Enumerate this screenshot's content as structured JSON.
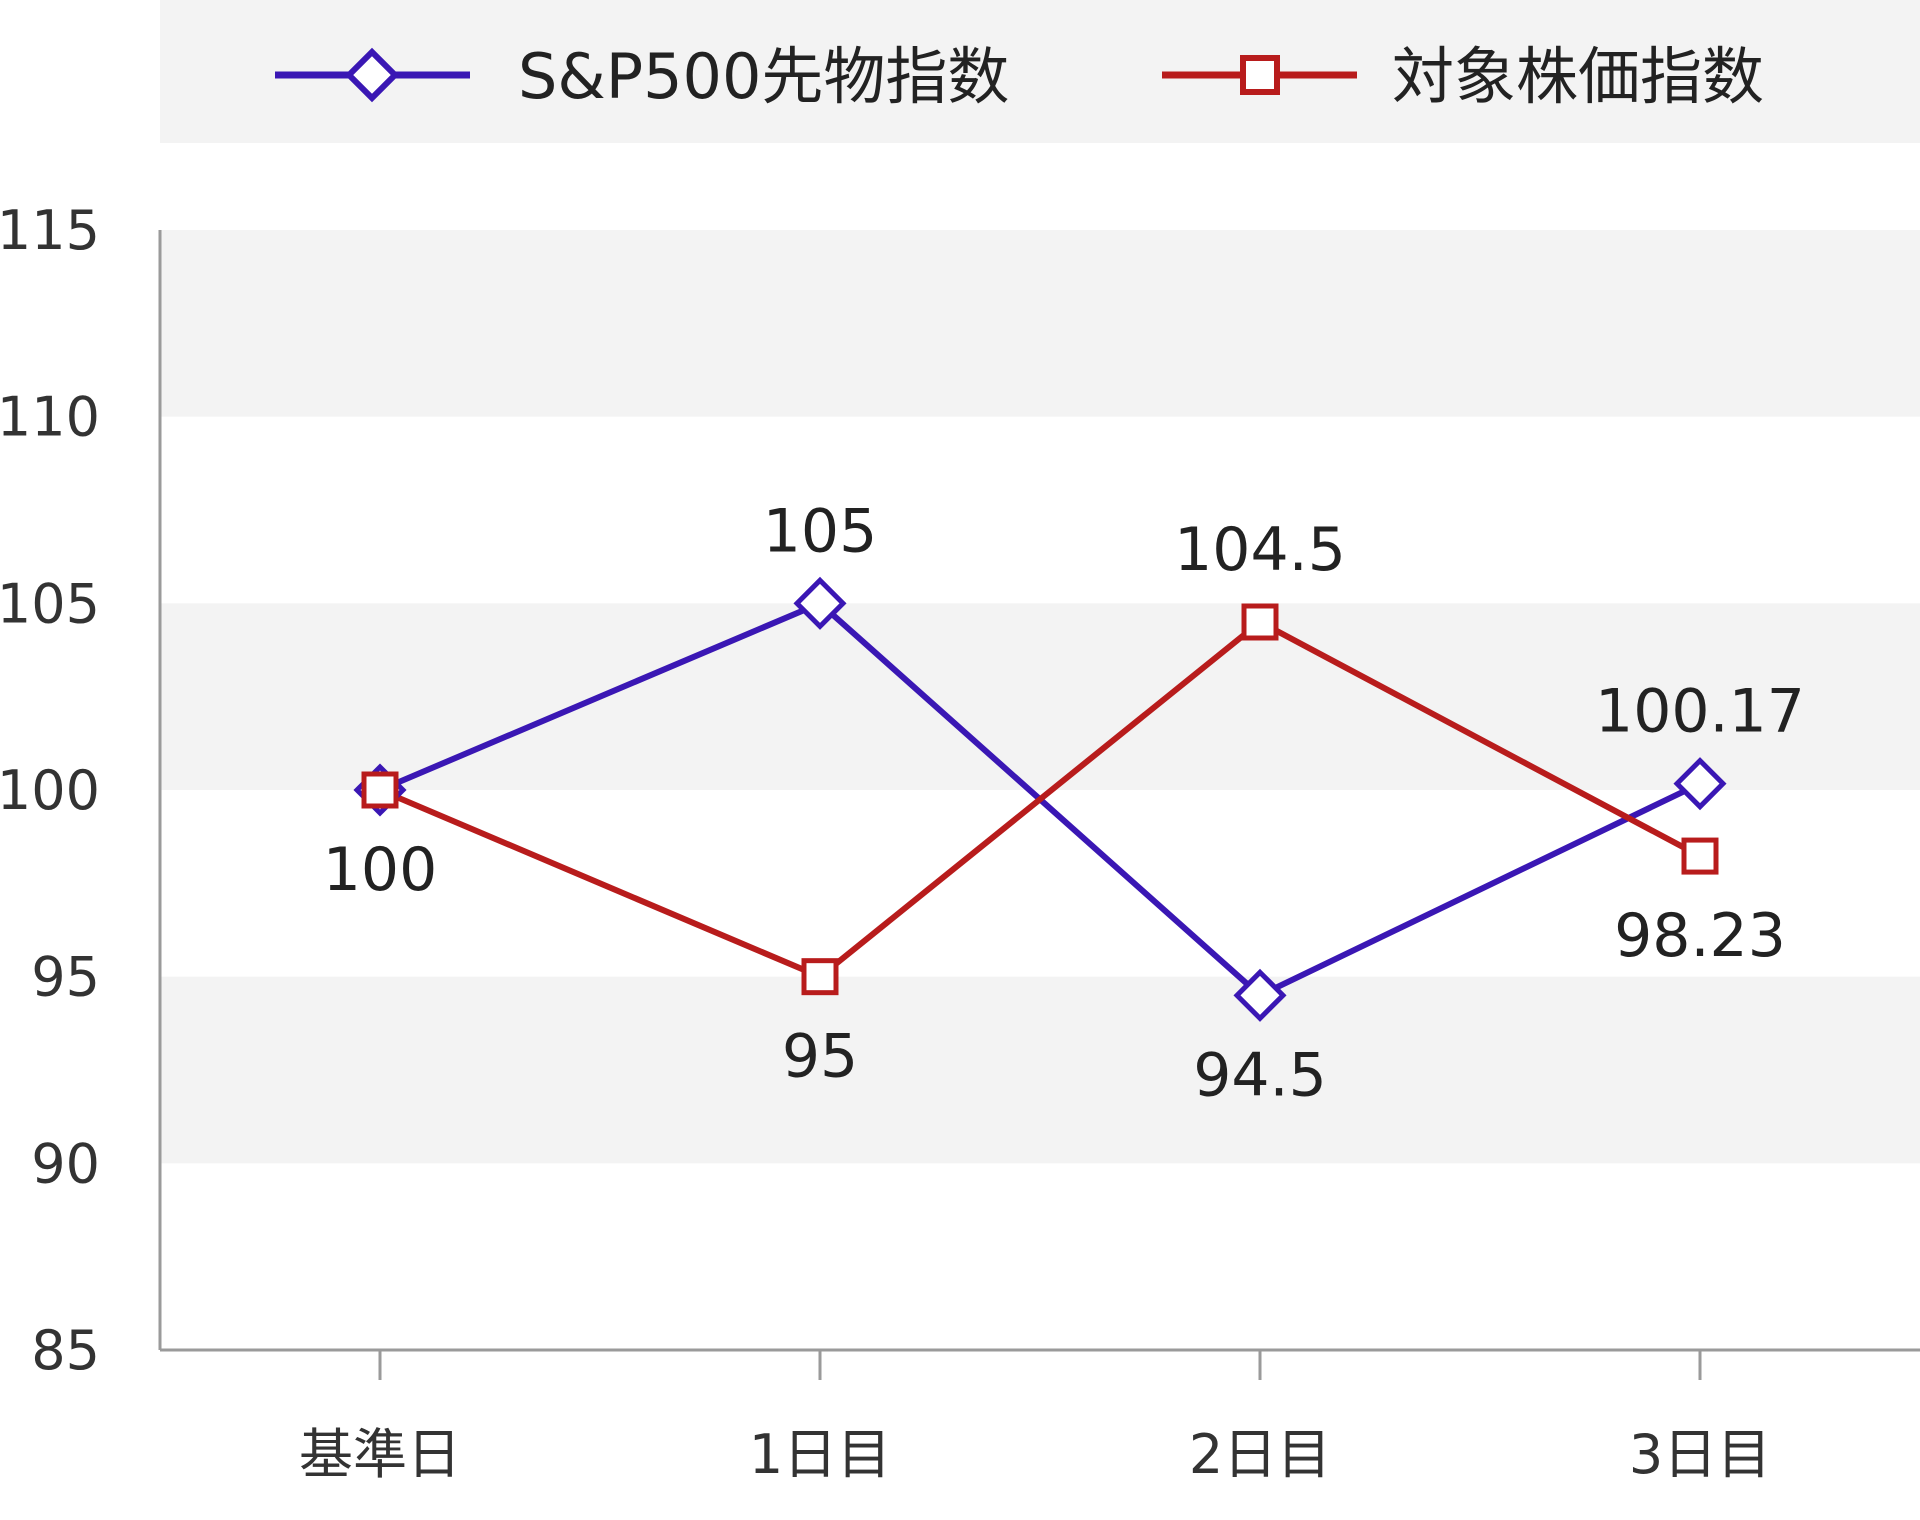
{
  "chart_data": {
    "type": "line",
    "categories": [
      "基準日",
      "1日目",
      "2日目",
      "3日目"
    ],
    "series": [
      {
        "name": "S&P500先物指数",
        "values": [
          100,
          105,
          94.5,
          100.17
        ],
        "labels": [
          "",
          "105",
          "94.5",
          "100.17"
        ],
        "label_pos": [
          "",
          "above",
          "below",
          "above"
        ],
        "color": "#3a17b4",
        "marker": "diamond"
      },
      {
        "name": "対象株価指数",
        "values": [
          100,
          95,
          104.5,
          98.23
        ],
        "labels": [
          "100",
          "95",
          "104.5",
          "98.23"
        ],
        "label_pos": [
          "below",
          "below",
          "above",
          "below"
        ],
        "color": "#b81c1c",
        "marker": "square"
      }
    ],
    "ylim": [
      85,
      115
    ],
    "yticks": [
      85,
      90,
      95,
      100,
      105,
      110,
      115
    ],
    "title": "",
    "xlabel": "",
    "ylabel": "",
    "legend": "top",
    "grid": "alternating horizontal bands",
    "band_color": "#f3f3f3",
    "axis_color": "#9a9a9a"
  }
}
